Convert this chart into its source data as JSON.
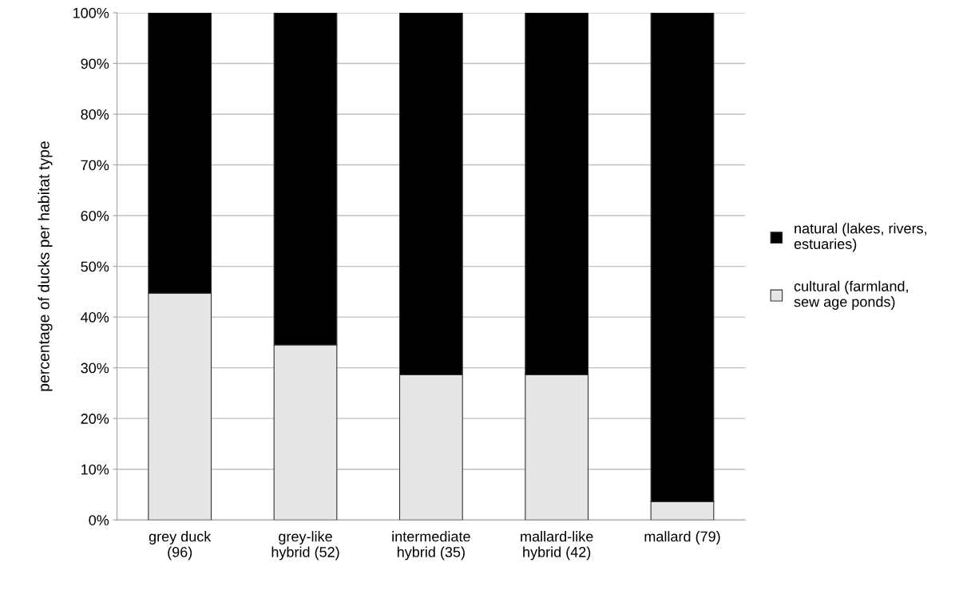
{
  "chart_data": {
    "type": "bar",
    "stacked": true,
    "ylabel": "percentage of ducks per habitat type",
    "categories": [
      "grey duck\n(96)",
      "grey-like\nhybrid (52)",
      "intermediate\nhybrid (35)",
      "mallard-like\nhybrid (42)",
      "mallard (79)"
    ],
    "series": [
      {
        "name": "cultural (farmland,\nsew age ponds)",
        "color": "#e6e6e6",
        "values": [
          44.7,
          34.5,
          28.6,
          28.6,
          3.6
        ]
      },
      {
        "name": "natural (lakes, rivers,\nestuaries)",
        "color": "#000000",
        "values": [
          55.3,
          65.5,
          71.4,
          71.4,
          96.4
        ]
      }
    ],
    "ylim": [
      0,
      100
    ],
    "yticks": [
      {
        "value": 0,
        "label": "0%"
      },
      {
        "value": 10,
        "label": "10%"
      },
      {
        "value": 20,
        "label": "20%"
      },
      {
        "value": 30,
        "label": "30%"
      },
      {
        "value": 40,
        "label": "40%"
      },
      {
        "value": 50,
        "label": "50%"
      },
      {
        "value": 60,
        "label": "60%"
      },
      {
        "value": 70,
        "label": "70%"
      },
      {
        "value": 80,
        "label": "80%"
      },
      {
        "value": 90,
        "label": "90%"
      },
      {
        "value": 100,
        "label": "100%"
      }
    ],
    "grid": "y",
    "legend": "right"
  }
}
